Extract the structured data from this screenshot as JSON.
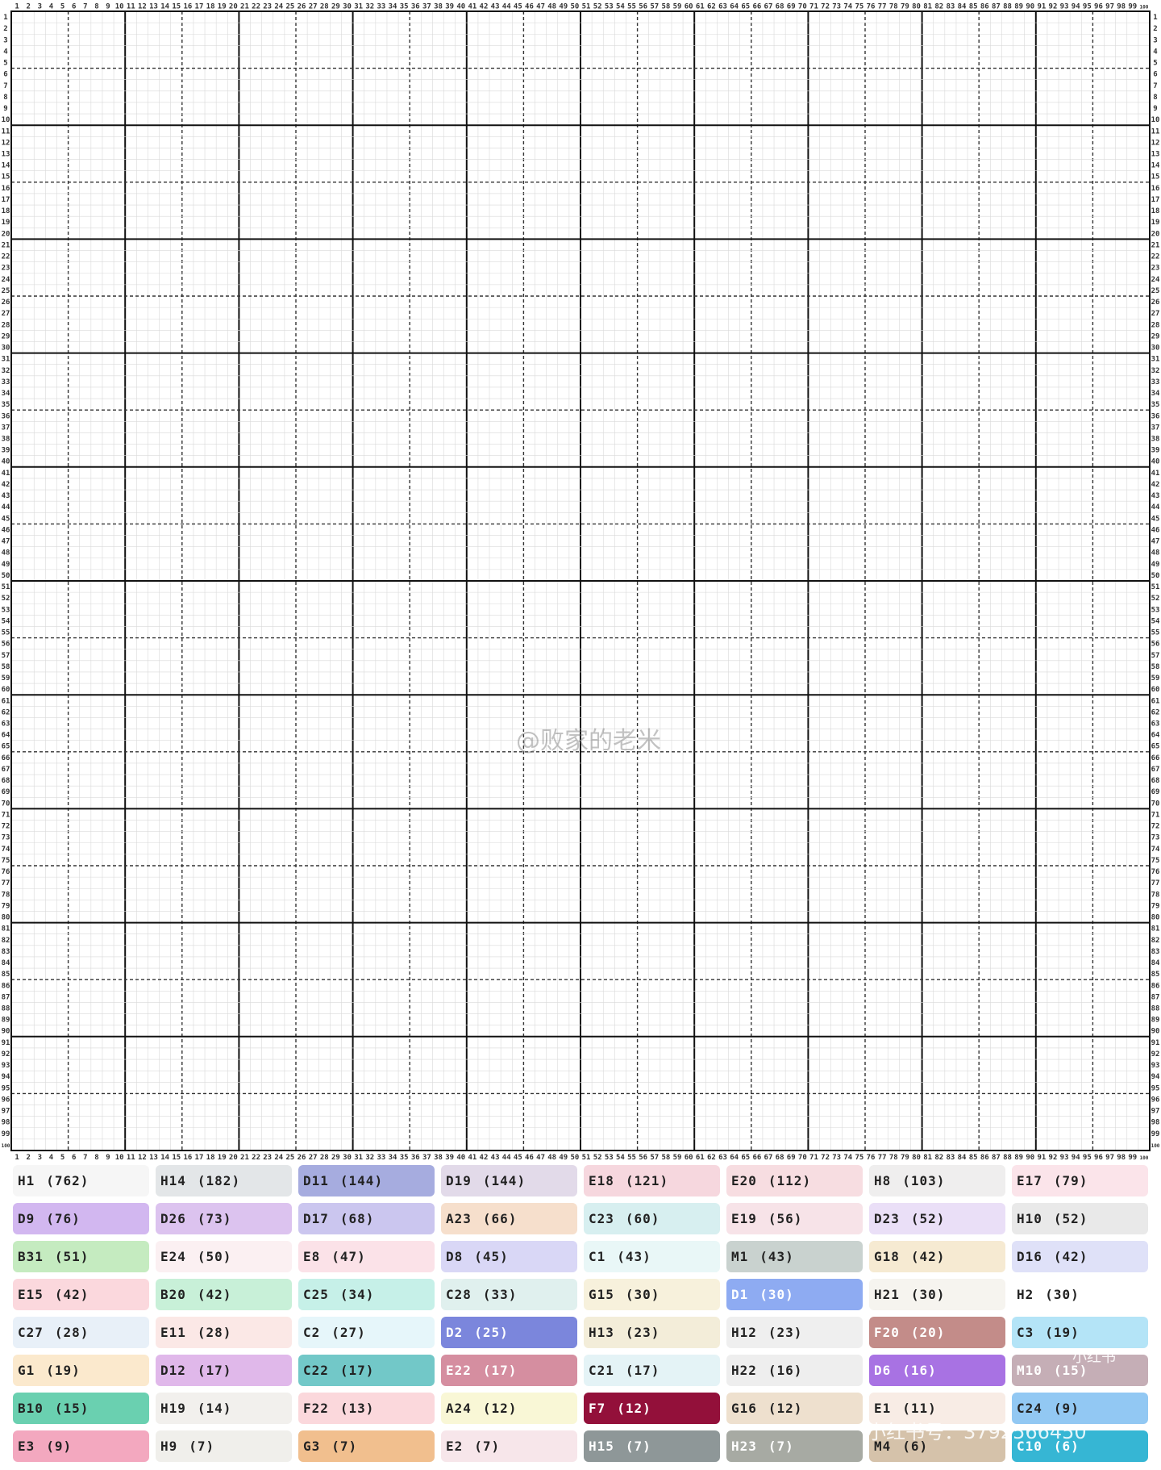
{
  "grid": {
    "columns": 100,
    "rows": 100,
    "column_labels_start": 1,
    "bold_line_every": 10,
    "dashed_line_every": 5
  },
  "watermarks": {
    "center_handle": "@败家的老米",
    "site_label": "小红书",
    "site_id": "小红书号：3792566450"
  },
  "colors": {
    "grid_line": "#d9d9d9",
    "bold_line": "#111111",
    "dashed_line": "#333333",
    "label_text": "#333333"
  },
  "legend": [
    {
      "code": "H1",
      "count": "(762)",
      "bg": "#f6f6f6",
      "fg": "#222222"
    },
    {
      "code": "H14",
      "count": "(182)",
      "bg": "#e3e6e8",
      "fg": "#222222"
    },
    {
      "code": "D11",
      "count": "(144)",
      "bg": "#a6acdf",
      "fg": "#222222"
    },
    {
      "code": "D19",
      "count": "(144)",
      "bg": "#e2dae9",
      "fg": "#222222"
    },
    {
      "code": "E18",
      "count": "(121)",
      "bg": "#f6d7de",
      "fg": "#222222"
    },
    {
      "code": "E20",
      "count": "(112)",
      "bg": "#f7dde1",
      "fg": "#222222"
    },
    {
      "code": "H8",
      "count": "(103)",
      "bg": "#efeeee",
      "fg": "#222222"
    },
    {
      "code": "E17",
      "count": "(79)",
      "bg": "#fbe4ea",
      "fg": "#222222"
    },
    {
      "code": "D9",
      "count": "(76)",
      "bg": "#d2b7f0",
      "fg": "#222222"
    },
    {
      "code": "D26",
      "count": "(73)",
      "bg": "#dcc3ef",
      "fg": "#222222"
    },
    {
      "code": "D17",
      "count": "(68)",
      "bg": "#cbc6ef",
      "fg": "#222222"
    },
    {
      "code": "A23",
      "count": "(66)",
      "bg": "#f6dfcc",
      "fg": "#222222"
    },
    {
      "code": "C23",
      "count": "(60)",
      "bg": "#d7eff0",
      "fg": "#222222"
    },
    {
      "code": "E19",
      "count": "(56)",
      "bg": "#f7e3e8",
      "fg": "#222222"
    },
    {
      "code": "D23",
      "count": "(52)",
      "bg": "#eadff7",
      "fg": "#222222"
    },
    {
      "code": "H10",
      "count": "(52)",
      "bg": "#e9e9e9",
      "fg": "#222222"
    },
    {
      "code": "B31",
      "count": "(51)",
      "bg": "#c5ebc0",
      "fg": "#222222"
    },
    {
      "code": "E24",
      "count": "(50)",
      "bg": "#fbf0f2",
      "fg": "#222222"
    },
    {
      "code": "E8",
      "count": "(47)",
      "bg": "#fbe2e8",
      "fg": "#222222"
    },
    {
      "code": "D8",
      "count": "(45)",
      "bg": "#d9d7f6",
      "fg": "#222222"
    },
    {
      "code": "C1",
      "count": "(43)",
      "bg": "#e9f7f7",
      "fg": "#222222"
    },
    {
      "code": "M1",
      "count": "(43)",
      "bg": "#c9d2cf",
      "fg": "#222222"
    },
    {
      "code": "G18",
      "count": "(42)",
      "bg": "#f6ead2",
      "fg": "#222222"
    },
    {
      "code": "D16",
      "count": "(42)",
      "bg": "#dfe1f8",
      "fg": "#222222"
    },
    {
      "code": "E15",
      "count": "(42)",
      "bg": "#fbd8dd",
      "fg": "#222222"
    },
    {
      "code": "B20",
      "count": "(42)",
      "bg": "#c8f0d8",
      "fg": "#222222"
    },
    {
      "code": "C25",
      "count": "(34)",
      "bg": "#c6f0e8",
      "fg": "#222222"
    },
    {
      "code": "C28",
      "count": "(33)",
      "bg": "#e0f0ee",
      "fg": "#222222"
    },
    {
      "code": "G15",
      "count": "(30)",
      "bg": "#f7f1dc",
      "fg": "#222222"
    },
    {
      "code": "D1",
      "count": "(30)",
      "bg": "#8eabf2",
      "fg": "#ffffff"
    },
    {
      "code": "H21",
      "count": "(30)",
      "bg": "#f6f4ef",
      "fg": "#222222"
    },
    {
      "code": "H2",
      "count": "(30)",
      "bg": "#ffffff",
      "fg": "#222222"
    },
    {
      "code": "C27",
      "count": "(28)",
      "bg": "#e8f0f8",
      "fg": "#222222"
    },
    {
      "code": "E11",
      "count": "(28)",
      "bg": "#fbe8e6",
      "fg": "#222222"
    },
    {
      "code": "C2",
      "count": "(27)",
      "bg": "#e6f6fa",
      "fg": "#222222"
    },
    {
      "code": "D2",
      "count": "(25)",
      "bg": "#7b86dc",
      "fg": "#ffffff"
    },
    {
      "code": "H13",
      "count": "(23)",
      "bg": "#f3edd9",
      "fg": "#222222"
    },
    {
      "code": "H12",
      "count": "(23)",
      "bg": "#efefef",
      "fg": "#222222"
    },
    {
      "code": "F20",
      "count": "(20)",
      "bg": "#c38c89",
      "fg": "#ffffff"
    },
    {
      "code": "C3",
      "count": "(19)",
      "bg": "#b4e4f7",
      "fg": "#222222"
    },
    {
      "code": "G1",
      "count": "(19)",
      "bg": "#fbe9cd",
      "fg": "#222222"
    },
    {
      "code": "D12",
      "count": "(17)",
      "bg": "#e0b8ea",
      "fg": "#222222"
    },
    {
      "code": "C22",
      "count": "(17)",
      "bg": "#72c8c8",
      "fg": "#222222"
    },
    {
      "code": "E22",
      "count": "(17)",
      "bg": "#d58ea0",
      "fg": "#ffffff"
    },
    {
      "code": "C21",
      "count": "(17)",
      "bg": "#e4f3f6",
      "fg": "#222222"
    },
    {
      "code": "H22",
      "count": "(16)",
      "bg": "#eeeeee",
      "fg": "#222222"
    },
    {
      "code": "D6",
      "count": "(16)",
      "bg": "#a872e3",
      "fg": "#ffffff"
    },
    {
      "code": "M10",
      "count": "(15)",
      "bg": "#c5aeb6",
      "fg": "#ffffff"
    },
    {
      "code": "B10",
      "count": "(15)",
      "bg": "#6ad0b0",
      "fg": "#222222"
    },
    {
      "code": "H19",
      "count": "(14)",
      "bg": "#f2f0ed",
      "fg": "#222222"
    },
    {
      "code": "F22",
      "count": "(13)",
      "bg": "#fbd8dc",
      "fg": "#222222"
    },
    {
      "code": "A24",
      "count": "(12)",
      "bg": "#f9f7d6",
      "fg": "#222222"
    },
    {
      "code": "F7",
      "count": "(12)",
      "bg": "#93103a",
      "fg": "#ffffff"
    },
    {
      "code": "G16",
      "count": "(12)",
      "bg": "#eee0ce",
      "fg": "#222222"
    },
    {
      "code": "E1",
      "count": "(11)",
      "bg": "#f8ece5",
      "fg": "#222222"
    },
    {
      "code": "C24",
      "count": "(9)",
      "bg": "#92c8f3",
      "fg": "#222222"
    },
    {
      "code": "E3",
      "count": "(9)",
      "bg": "#f3a8bf",
      "fg": "#222222"
    },
    {
      "code": "H9",
      "count": "(7)",
      "bg": "#f0efeb",
      "fg": "#222222"
    },
    {
      "code": "G3",
      "count": "(7)",
      "bg": "#f1bf8e",
      "fg": "#222222"
    },
    {
      "code": "E2",
      "count": "(7)",
      "bg": "#f7e6ea",
      "fg": "#222222"
    },
    {
      "code": "H15",
      "count": "(7)",
      "bg": "#8e9798",
      "fg": "#ffffff"
    },
    {
      "code": "H23",
      "count": "(7)",
      "bg": "#a7aaa3",
      "fg": "#ffffff"
    },
    {
      "code": "M4",
      "count": "(6)",
      "bg": "#d5c2aa",
      "fg": "#222222"
    },
    {
      "code": "C10",
      "count": "(6)",
      "bg": "#36b6d4",
      "fg": "#ffffff"
    }
  ]
}
